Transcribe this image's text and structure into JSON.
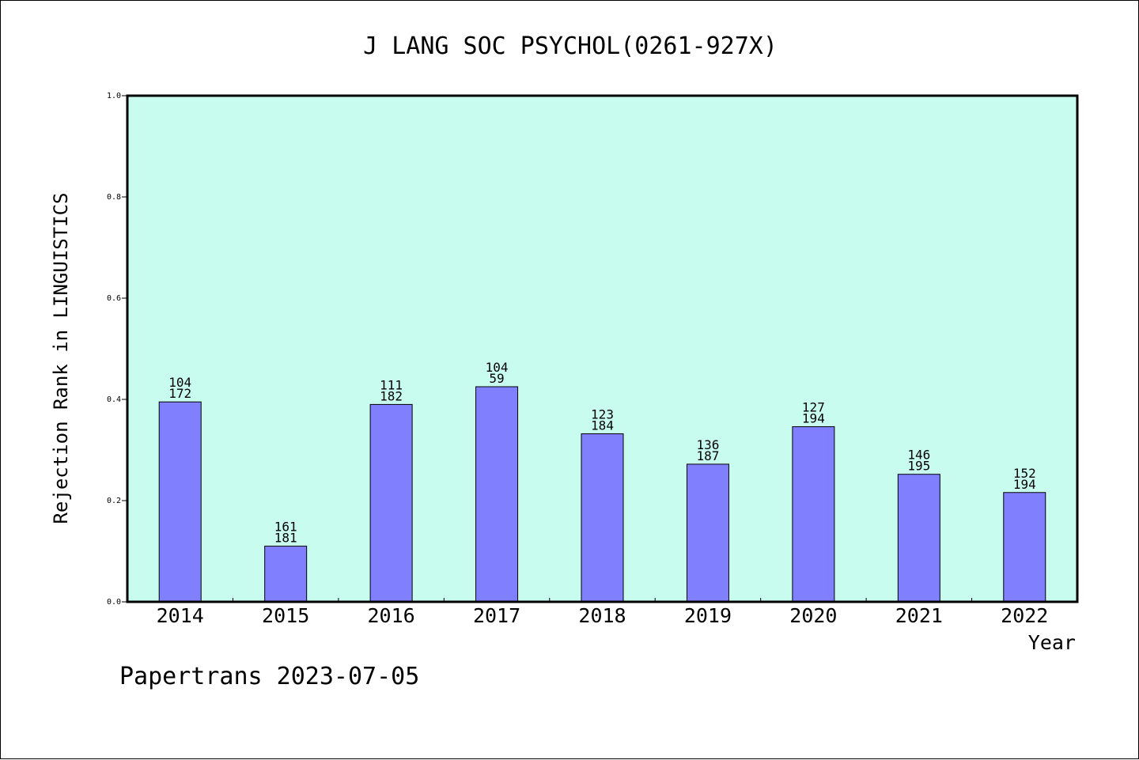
{
  "colors": {
    "plot_background": "#c8fcef",
    "bar_fill": "#8080ff",
    "axis": "#000000"
  },
  "chart_data": {
    "type": "bar",
    "title": "J LANG SOC PSYCHOL(0261-927X)",
    "xlabel": "Year",
    "ylabel": "Rejection Rank in LINGUISTICS",
    "ylim": [
      0,
      1.0
    ],
    "y_ticks": [
      "0.0",
      "0.2",
      "0.4",
      "0.6",
      "0.8",
      "1.0"
    ],
    "categories": [
      "2014",
      "2015",
      "2016",
      "2017",
      "2018",
      "2019",
      "2020",
      "2021",
      "2022"
    ],
    "values": [
      0.395,
      0.11,
      0.39,
      0.425,
      0.332,
      0.272,
      0.346,
      0.252,
      0.216
    ],
    "label_top": [
      "104",
      "161",
      "111",
      "104",
      "123",
      "136",
      "127",
      "146",
      "152"
    ],
    "label_bottom": [
      "172",
      "181",
      "182",
      "59",
      "184",
      "187",
      "194",
      "195",
      "194"
    ],
    "grid": false,
    "legend": "none"
  },
  "footer": {
    "text": "Papertrans 2023-07-05"
  }
}
